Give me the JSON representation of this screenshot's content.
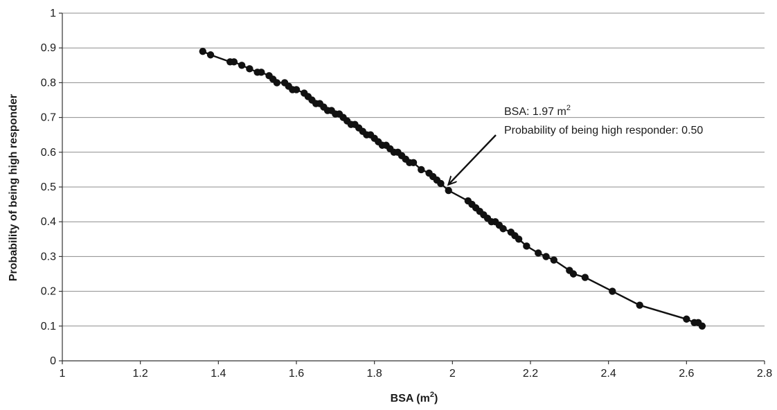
{
  "chart_data": {
    "type": "line",
    "xlabel": "BSA (m",
    "xlabel_sup": "2",
    "xlabel_suffix": ")",
    "ylabel": "Probability of being high responder",
    "xlim": [
      1,
      2.8
    ],
    "ylim": [
      0,
      1
    ],
    "x_ticks": [
      1,
      1.2,
      1.4,
      1.6,
      1.8,
      2,
      2.2,
      2.4,
      2.6,
      2.8
    ],
    "y_ticks": [
      0,
      0.1,
      0.2,
      0.3,
      0.4,
      0.5,
      0.6,
      0.7,
      0.8,
      0.9,
      1
    ],
    "x_tick_labels": [
      "1",
      "1.2",
      "1.4",
      "1.6",
      "1.8",
      "2",
      "2.2",
      "2.4",
      "2.6",
      "2.8"
    ],
    "y_tick_labels": [
      "0",
      "0.1",
      "0.2",
      "0.3",
      "0.4",
      "0.5",
      "0.6",
      "0.7",
      "0.8",
      "0.9",
      "1"
    ],
    "grid": "horizontal",
    "marker_color": "#111111",
    "line_color": "#111111",
    "series": [
      {
        "x": [
          1.36,
          1.38,
          1.43,
          1.44,
          1.46,
          1.48,
          1.5,
          1.51,
          1.53,
          1.54,
          1.55,
          1.57,
          1.58,
          1.59,
          1.6,
          1.62,
          1.63,
          1.64,
          1.65,
          1.66,
          1.67,
          1.68,
          1.69,
          1.7,
          1.71,
          1.72,
          1.73,
          1.74,
          1.75,
          1.76,
          1.77,
          1.78,
          1.79,
          1.8,
          1.81,
          1.82,
          1.83,
          1.84,
          1.85,
          1.86,
          1.87,
          1.88,
          1.89,
          1.9,
          1.92,
          1.94,
          1.95,
          1.96,
          1.97,
          1.99,
          2.04,
          2.05,
          2.06,
          2.07,
          2.08,
          2.09,
          2.1,
          2.11,
          2.12,
          2.13,
          2.15,
          2.16,
          2.17,
          2.19,
          2.22,
          2.24,
          2.26,
          2.3,
          2.31,
          2.34,
          2.41,
          2.48,
          2.6,
          2.62,
          2.63,
          2.64
        ],
        "y": [
          0.89,
          0.88,
          0.86,
          0.86,
          0.85,
          0.84,
          0.83,
          0.83,
          0.82,
          0.81,
          0.8,
          0.8,
          0.79,
          0.78,
          0.78,
          0.77,
          0.76,
          0.75,
          0.74,
          0.74,
          0.73,
          0.72,
          0.72,
          0.71,
          0.71,
          0.7,
          0.69,
          0.68,
          0.68,
          0.67,
          0.66,
          0.65,
          0.65,
          0.64,
          0.63,
          0.62,
          0.62,
          0.61,
          0.6,
          0.6,
          0.59,
          0.58,
          0.57,
          0.57,
          0.55,
          0.54,
          0.53,
          0.52,
          0.51,
          0.49,
          0.46,
          0.45,
          0.44,
          0.43,
          0.42,
          0.41,
          0.4,
          0.4,
          0.39,
          0.38,
          0.37,
          0.36,
          0.35,
          0.33,
          0.31,
          0.3,
          0.29,
          0.26,
          0.25,
          0.24,
          0.2,
          0.16,
          0.12,
          0.11,
          0.11,
          0.1
        ]
      }
    ],
    "annotation": {
      "line1": "BSA: 1.97 m",
      "line1_sup": "2",
      "line2": "Probability of being high responder: 0.50",
      "point": [
        1.99,
        0.5
      ]
    }
  }
}
